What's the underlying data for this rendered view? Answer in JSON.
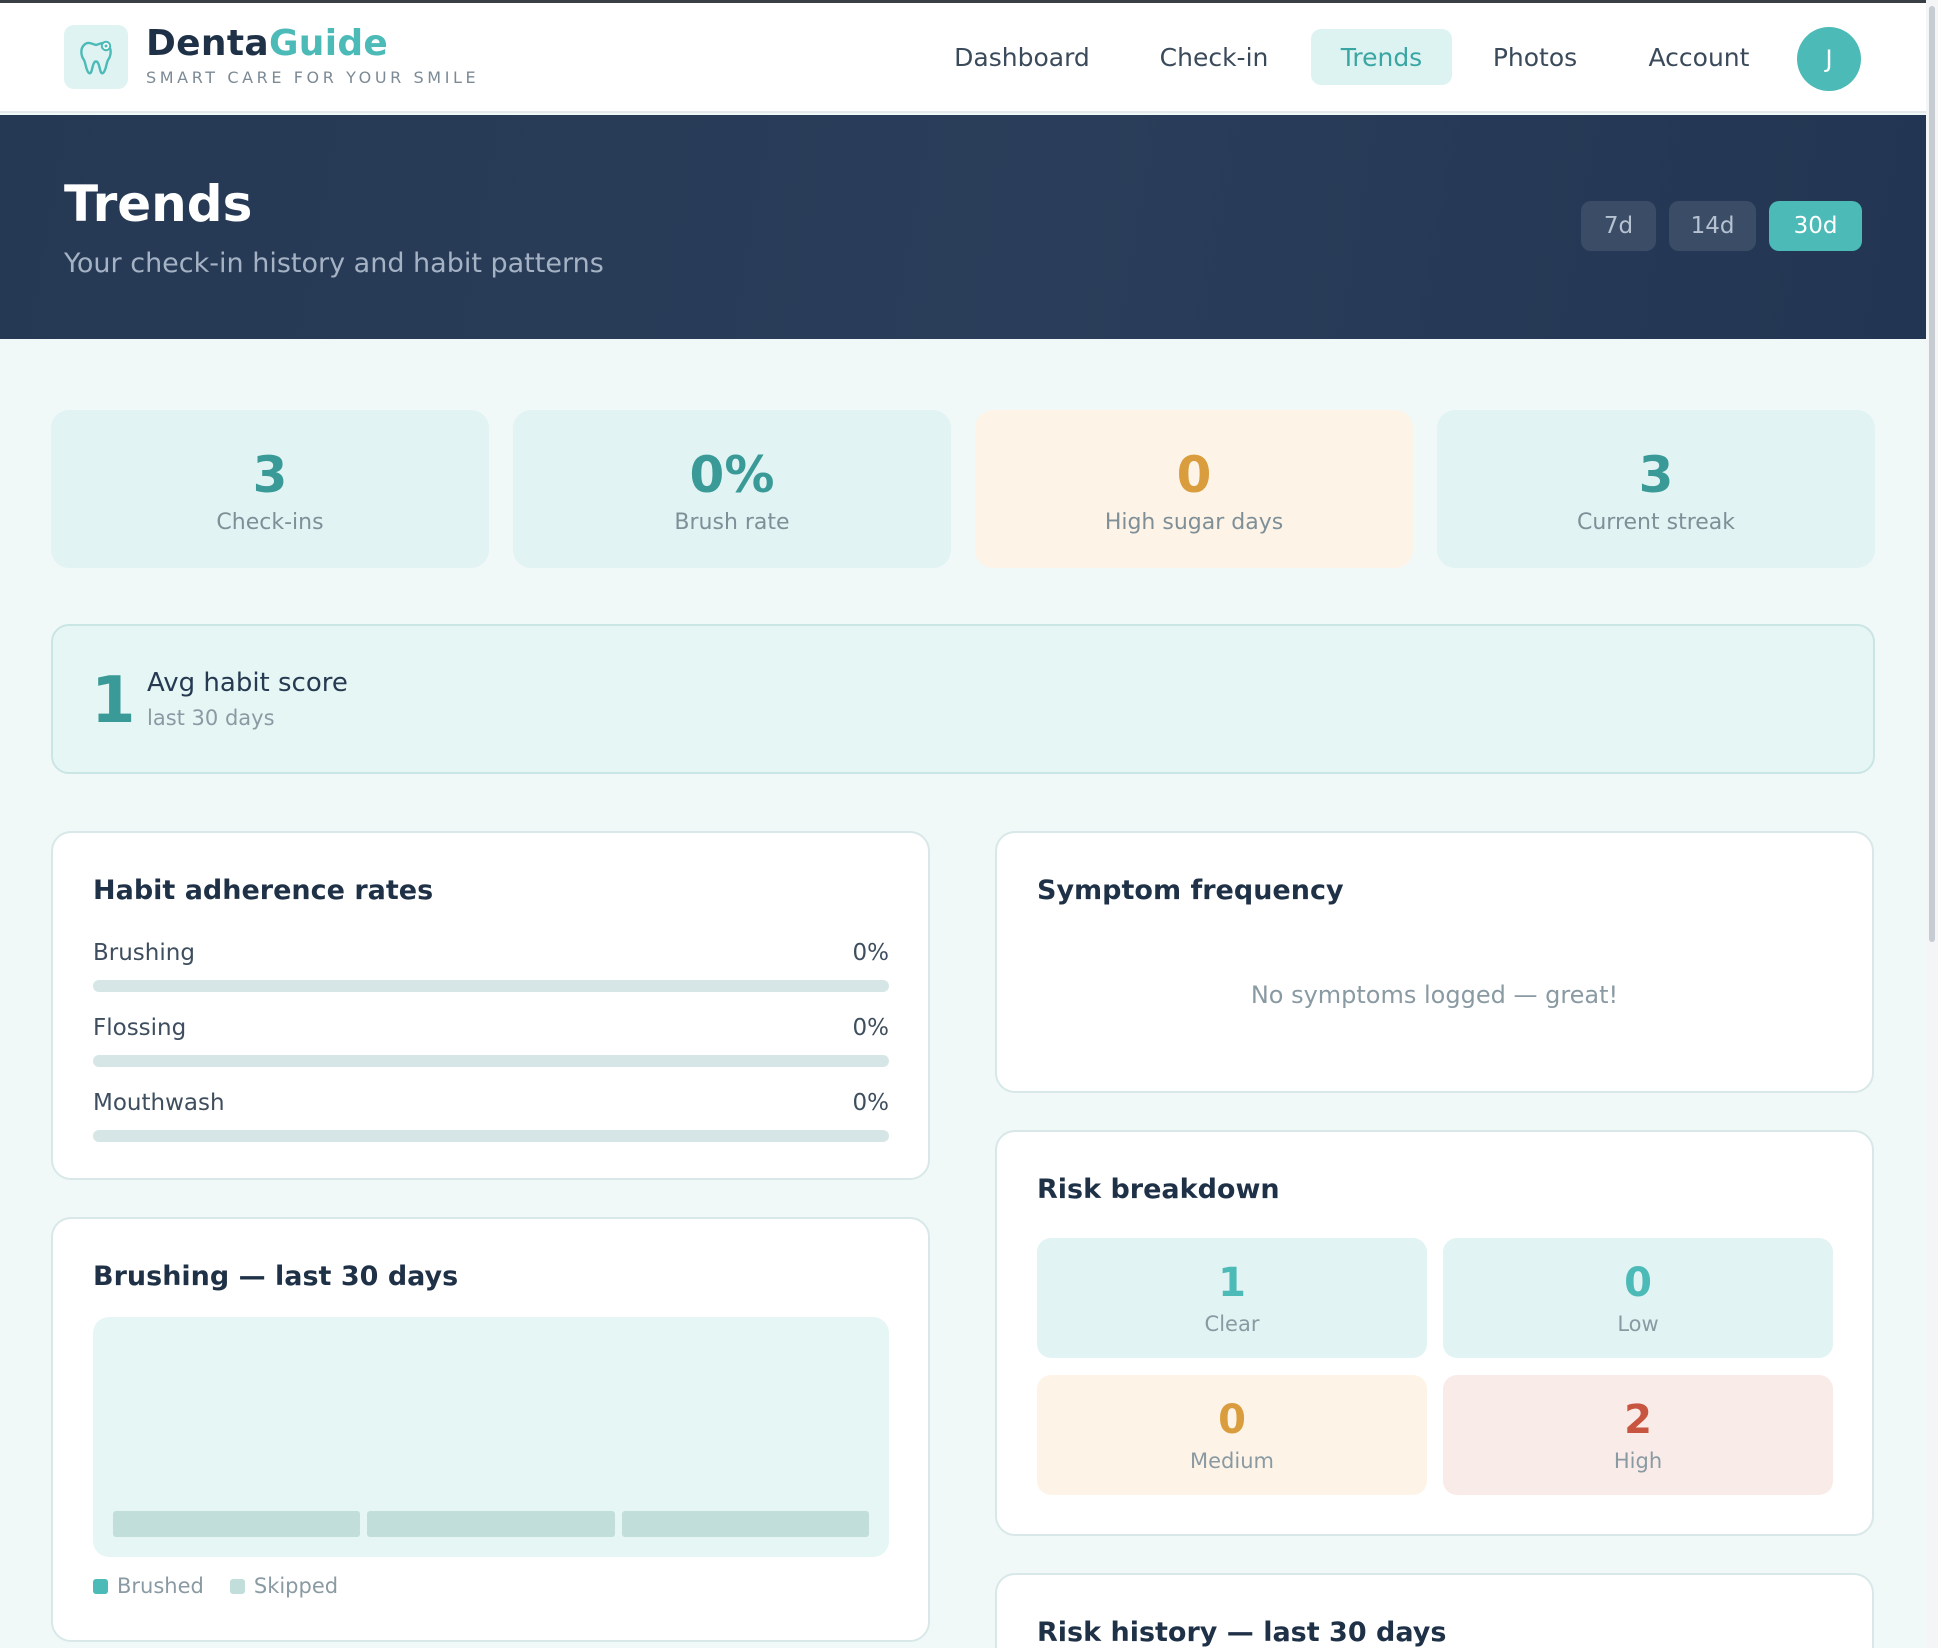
{
  "brand": {
    "name_part1": "Denta",
    "name_part2": "Guide",
    "tagline": "SMART CARE FOR YOUR SMILE"
  },
  "nav": {
    "items": [
      "Dashboard",
      "Check-in",
      "Trends",
      "Photos",
      "Account"
    ],
    "active": "Trends",
    "avatar_initial": "J"
  },
  "hero": {
    "title": "Trends",
    "subtitle": "Your check-in history and habit patterns",
    "ranges": [
      "7d",
      "14d",
      "30d"
    ],
    "active_range": "30d"
  },
  "stats": [
    {
      "value": "3",
      "label": "Check-ins"
    },
    {
      "value": "0%",
      "label": "Brush rate"
    },
    {
      "value": "0",
      "label": "High sugar days"
    },
    {
      "value": "3",
      "label": "Current streak"
    }
  ],
  "avg_habit": {
    "value": "1",
    "title": "Avg habit score",
    "subtitle": "last 30 days"
  },
  "habit_adherence": {
    "title": "Habit adherence rates",
    "rows": [
      {
        "label": "Brushing",
        "value": "0%",
        "fraction": 0
      },
      {
        "label": "Flossing",
        "value": "0%",
        "fraction": 0
      },
      {
        "label": "Mouthwash",
        "value": "0%",
        "fraction": 0
      }
    ]
  },
  "brushing_chart": {
    "title": "Brushing — last 30 days",
    "legend": [
      {
        "label": "Brushed",
        "color": "#4cbab7"
      },
      {
        "label": "Skipped",
        "color": "#c2dedb"
      }
    ]
  },
  "chart_data": {
    "type": "bar",
    "categories": [
      "",
      "",
      ""
    ],
    "series": [
      {
        "name": "Brushed",
        "values": [
          0,
          0,
          0
        ]
      },
      {
        "name": "Skipped",
        "values": [
          1,
          1,
          1
        ]
      }
    ],
    "title": "Brushing — last 30 days",
    "xlabel": "",
    "ylabel": "",
    "legend_position": "bottom-left"
  },
  "symptoms": {
    "title": "Symptom frequency",
    "empty_text": "No symptoms logged — great!"
  },
  "risk": {
    "title": "Risk breakdown",
    "tiles": [
      {
        "value": "1",
        "label": "Clear",
        "color": "#4cbab7",
        "bg": "#e1f3f3"
      },
      {
        "value": "0",
        "label": "Low",
        "color": "#4cbab7",
        "bg": "#e1f3f3"
      },
      {
        "value": "0",
        "label": "Medium",
        "color": "#d99d3d",
        "bg": "#fdf4e7"
      },
      {
        "value": "2",
        "label": "High",
        "color": "#c8553f",
        "bg": "#f9ebe8"
      }
    ]
  },
  "risk_history": {
    "title": "Risk history — last 30 days"
  }
}
